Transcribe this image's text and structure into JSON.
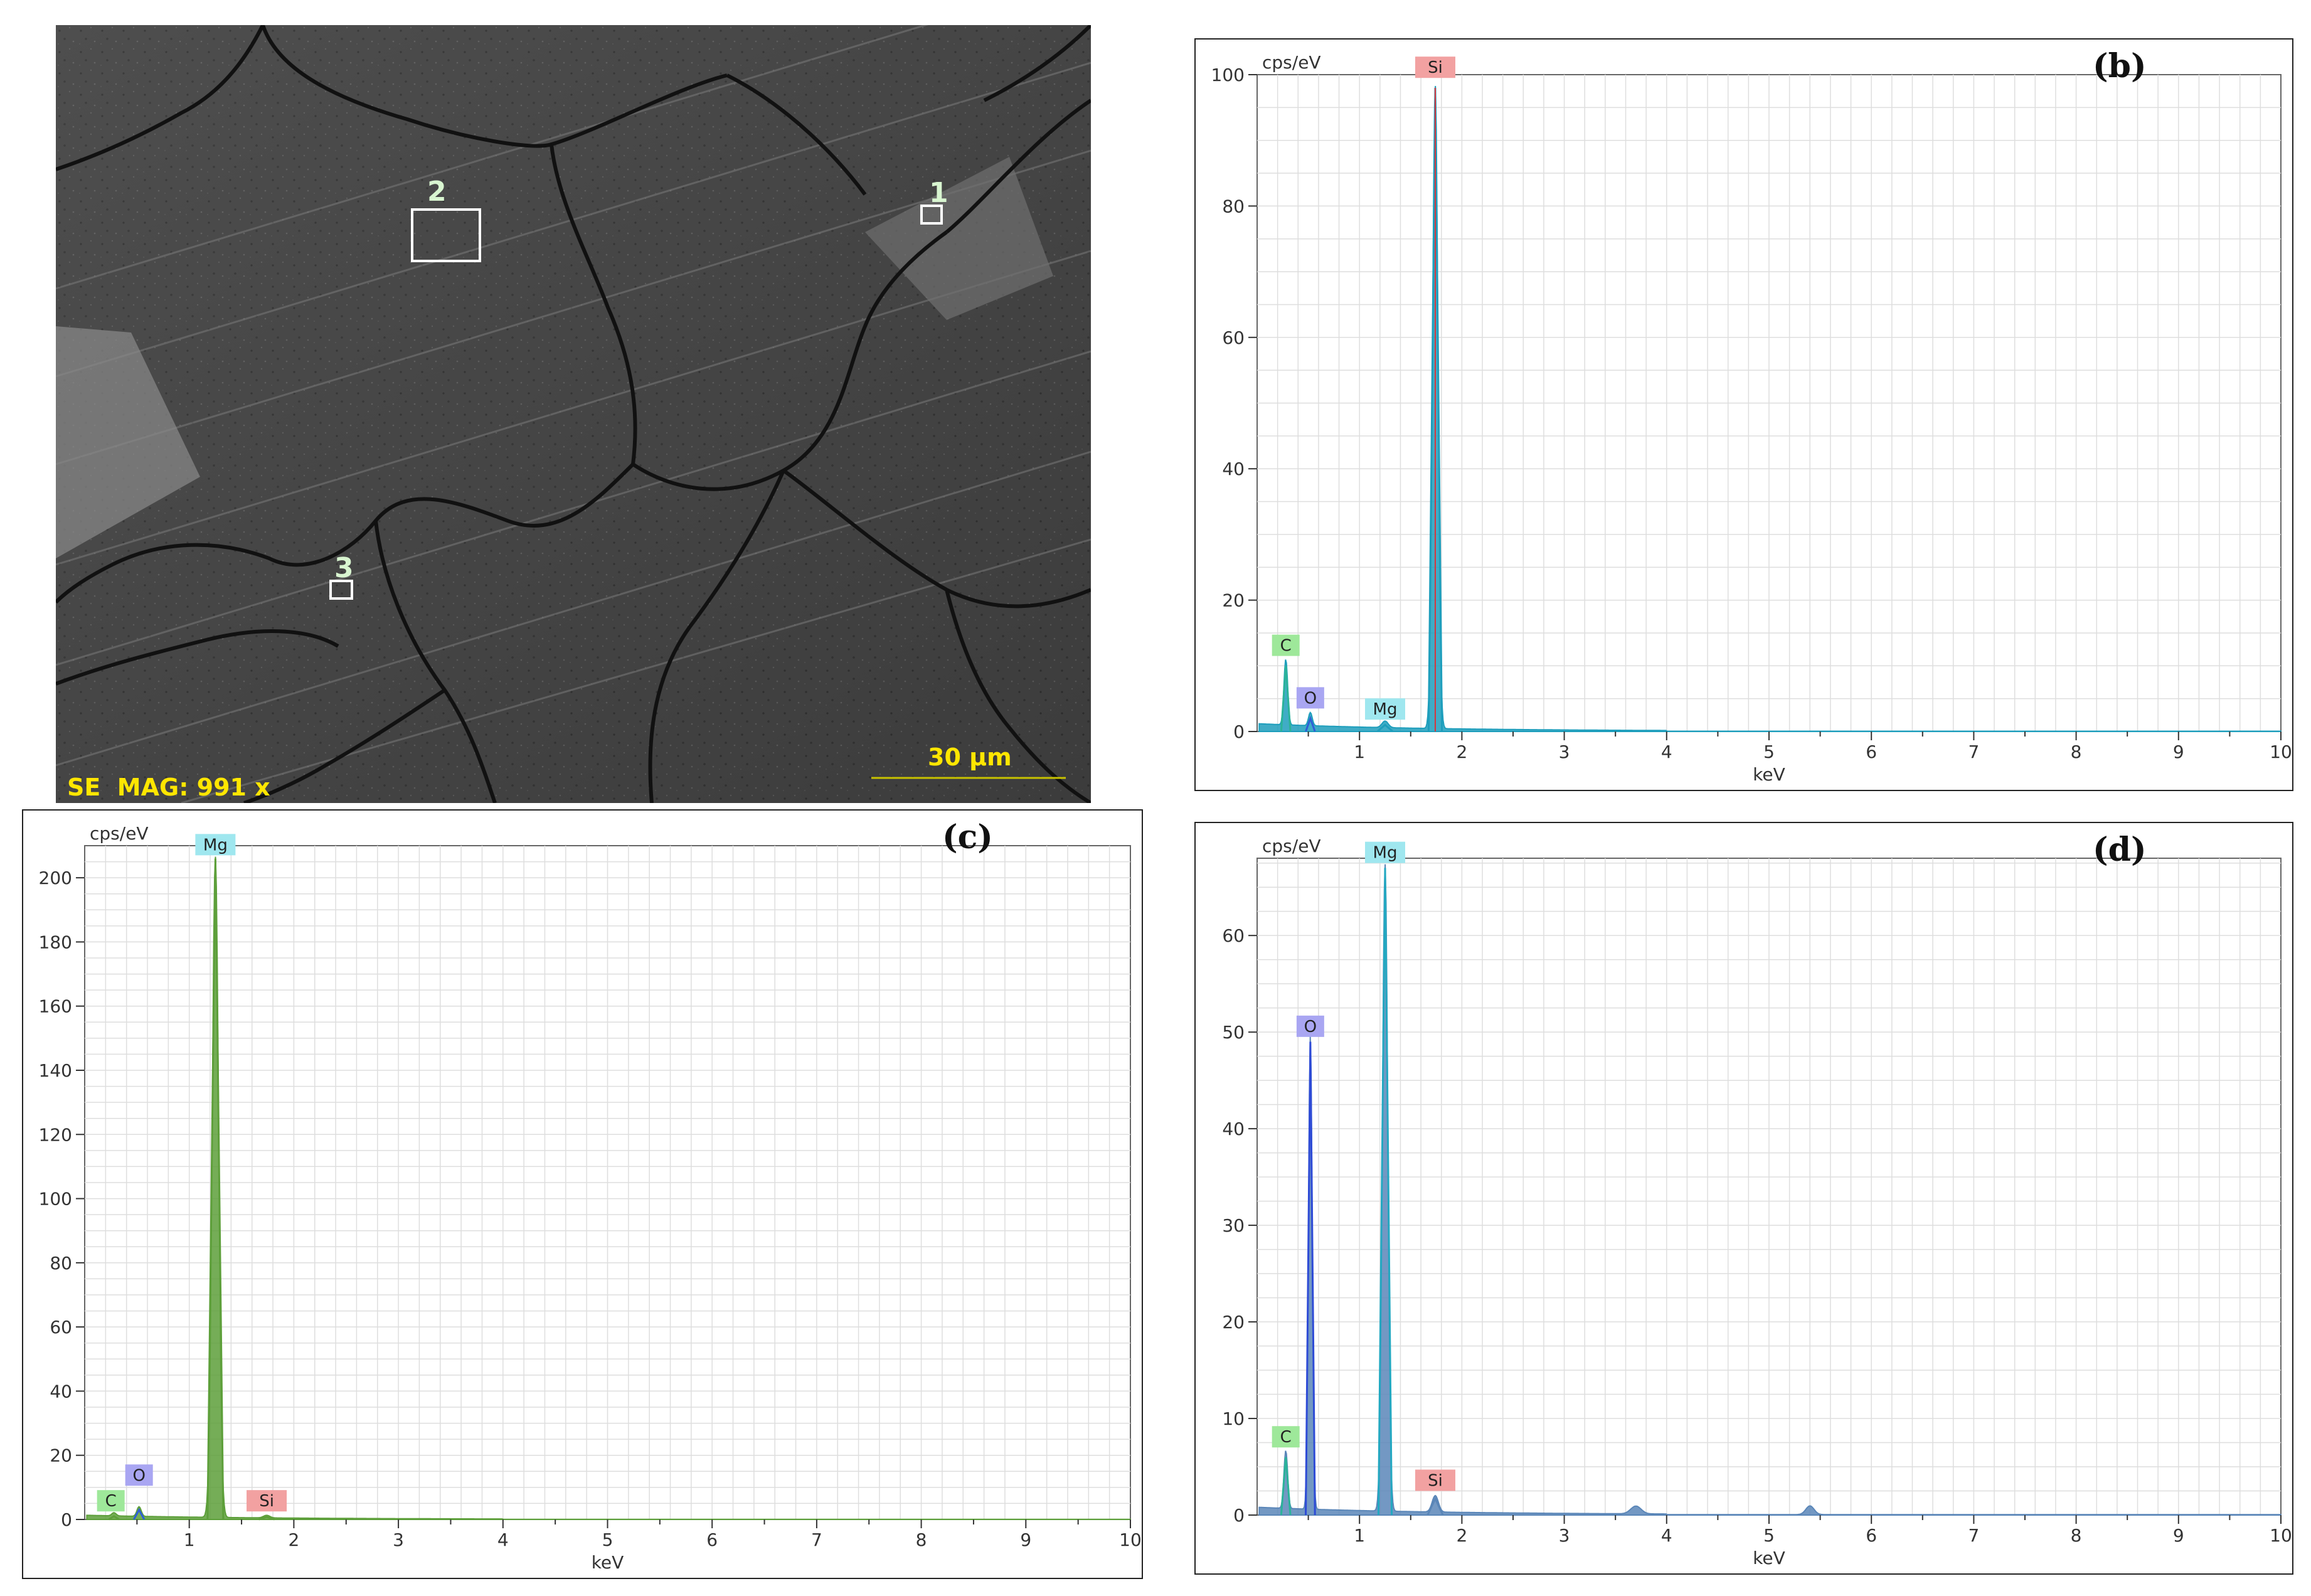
{
  "sem": {
    "status_text": "SE  MAG: 991 x",
    "scale_bar_label": "30 µm",
    "region_labels": [
      "1",
      "2",
      "3"
    ]
  },
  "chart_data": [
    {
      "id": "b",
      "type": "line",
      "panel_label": "(b)",
      "ylabel": "cps/eV",
      "xlabel": "keV",
      "xlim": [
        0,
        10
      ],
      "ylim": [
        0,
        100
      ],
      "xticks": [
        "1",
        "2",
        "3",
        "4",
        "5",
        "6",
        "7",
        "8",
        "9",
        "10"
      ],
      "yticks": [
        "0",
        "20",
        "40",
        "60",
        "80",
        "100"
      ],
      "grid": true,
      "fill_color": "#1e9ebc",
      "peaks": [
        {
          "element": "C",
          "x": 0.28,
          "y": 10,
          "width": 0.018,
          "color": "#2bb39a",
          "tag_bg": "#9ee89a"
        },
        {
          "element": "O",
          "x": 0.52,
          "y": 2,
          "width": 0.018,
          "color": "#2e5fd6",
          "tag_bg": "#a9a6f2"
        },
        {
          "element": "Mg",
          "x": 1.25,
          "y": 1,
          "width": 0.03,
          "color": "#1e9ebc",
          "tag_bg": "#9fe7ef"
        },
        {
          "element": "Si",
          "x": 1.74,
          "y": 98,
          "width": 0.026,
          "color": "#1e9ebc",
          "tag_bg": "#f2a1a1"
        }
      ],
      "tags": [
        {
          "text": "C",
          "x": 0.28,
          "y": 11.5
        },
        {
          "text": "O",
          "x": 0.52,
          "y": 3.5
        },
        {
          "text": "Mg",
          "x": 1.25,
          "y": 1.8
        },
        {
          "text": "Si",
          "x": 1.74,
          "y": 99.5
        }
      ],
      "baseline": 0.9,
      "marker_line_color": "#d9343b"
    },
    {
      "id": "c",
      "type": "line",
      "panel_label": "(c)",
      "ylabel": "cps/eV",
      "xlabel": "keV",
      "xlim": [
        0,
        10
      ],
      "ylim": [
        0,
        210
      ],
      "xticks": [
        "1",
        "2",
        "3",
        "4",
        "5",
        "6",
        "7",
        "8",
        "9",
        "10"
      ],
      "yticks": [
        "0",
        "20",
        "40",
        "60",
        "80",
        "100",
        "120",
        "140",
        "160",
        "180",
        "200"
      ],
      "grid": true,
      "fill_color": "#5d9f3a",
      "peaks": [
        {
          "element": "C",
          "x": 0.28,
          "y": 1,
          "width": 0.02,
          "color": "#5d9f3a",
          "tag_bg": "#9ee89a"
        },
        {
          "element": "O",
          "x": 0.52,
          "y": 3,
          "width": 0.02,
          "color": "#2e5fd6",
          "tag_bg": "#a9a6f2"
        },
        {
          "element": "Mg",
          "x": 1.25,
          "y": 206,
          "width": 0.03,
          "color": "#5d9f3a",
          "tag_bg": "#9fe7ef"
        },
        {
          "element": "Si",
          "x": 1.74,
          "y": 0.8,
          "width": 0.03,
          "color": "#5d9f3a",
          "tag_bg": "#f2a1a1"
        }
      ],
      "tags": [
        {
          "text": "C",
          "x": 0.25,
          "y": 2.5
        },
        {
          "text": "O",
          "x": 0.52,
          "y": 10.5
        },
        {
          "text": "Mg",
          "x": 1.25,
          "y": 207
        },
        {
          "text": "Si",
          "x": 1.74,
          "y": 2.5
        }
      ],
      "baseline": 1.0,
      "marker_line_color": ""
    },
    {
      "id": "d",
      "type": "line",
      "panel_label": "(d)",
      "ylabel": "cps/eV",
      "xlabel": "keV",
      "xlim": [
        0,
        10
      ],
      "ylim": [
        0,
        68
      ],
      "xticks": [
        "1",
        "2",
        "3",
        "4",
        "5",
        "6",
        "7",
        "8",
        "9",
        "10"
      ],
      "yticks": [
        "0",
        "10",
        "20",
        "30",
        "40",
        "50",
        "60"
      ],
      "grid": true,
      "fill_color": "#5a86b8",
      "peaks": [
        {
          "element": "C",
          "x": 0.28,
          "y": 6,
          "width": 0.018,
          "color": "#2bb39a",
          "tag_bg": "#9ee89a"
        },
        {
          "element": "O",
          "x": 0.52,
          "y": 49,
          "width": 0.018,
          "color": "#2e4bd6",
          "tag_bg": "#a9a6f2"
        },
        {
          "element": "Mg",
          "x": 1.25,
          "y": 67,
          "width": 0.026,
          "color": "#23a8c1",
          "tag_bg": "#9fe7ef"
        },
        {
          "element": "Si",
          "x": 1.74,
          "y": 1.7,
          "width": 0.03,
          "color": "#5a86b8",
          "tag_bg": "#f2a1a1"
        },
        {
          "element": "",
          "x": 3.7,
          "y": 0.8,
          "width": 0.05,
          "color": "#5a86b8",
          "tag_bg": ""
        },
        {
          "element": "",
          "x": 5.4,
          "y": 0.9,
          "width": 0.04,
          "color": "#5a86b8",
          "tag_bg": ""
        }
      ],
      "tags": [
        {
          "text": "C",
          "x": 0.28,
          "y": 7
        },
        {
          "text": "O",
          "x": 0.52,
          "y": 49.5
        },
        {
          "text": "Mg",
          "x": 1.25,
          "y": 67.5
        },
        {
          "text": "Si",
          "x": 1.74,
          "y": 2.5
        }
      ],
      "baseline": 0.6,
      "marker_line_color": ""
    }
  ]
}
